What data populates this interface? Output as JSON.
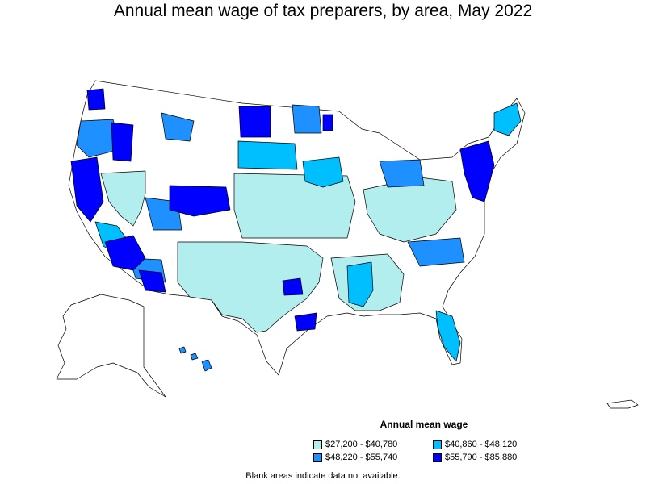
{
  "title": "Annual mean wage of tax preparers, by area, May 2022",
  "legend": {
    "title": "Annual mean wage",
    "items": [
      {
        "label": "$27,200 - $40,780",
        "color": "#b3eeee"
      },
      {
        "label": "$40,860 - $48,120",
        "color": "#00bfff"
      },
      {
        "label": "$48,220 - $55,740",
        "color": "#1e90ff"
      },
      {
        "label": "$55,790 - $85,880",
        "color": "#0000ff"
      }
    ]
  },
  "note": "Blank areas indicate data not available.",
  "colors": {
    "tier1": "#b3eeee",
    "tier2": "#00bfff",
    "tier3": "#1e90ff",
    "tier4": "#0000ff",
    "blank": "#ffffff",
    "border": "#000000"
  }
}
